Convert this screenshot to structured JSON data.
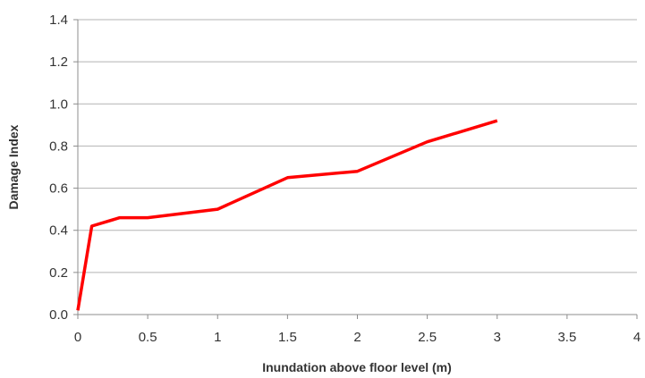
{
  "chart_data": {
    "type": "line",
    "title": "",
    "xlabel": "Inundation above floor level (m)",
    "ylabel": "Damage Index",
    "xlim": [
      0,
      4
    ],
    "ylim": [
      0,
      1.4
    ],
    "x_ticks": [
      "0",
      "0.5",
      "1",
      "1.5",
      "2",
      "2.5",
      "3",
      "3.5",
      "4"
    ],
    "y_ticks": [
      "0.0",
      "0.2",
      "0.4",
      "0.6",
      "0.8",
      "1.0",
      "1.2",
      "1.4"
    ],
    "grid": "horizontal",
    "legend": "none",
    "series": [
      {
        "color": "#ff0000",
        "x": [
          0,
          0.1,
          0.3,
          0.5,
          1.0,
          1.5,
          2.0,
          2.5,
          3.0
        ],
        "y": [
          0.02,
          0.42,
          0.46,
          0.46,
          0.5,
          0.65,
          0.68,
          0.82,
          0.92
        ]
      }
    ]
  }
}
